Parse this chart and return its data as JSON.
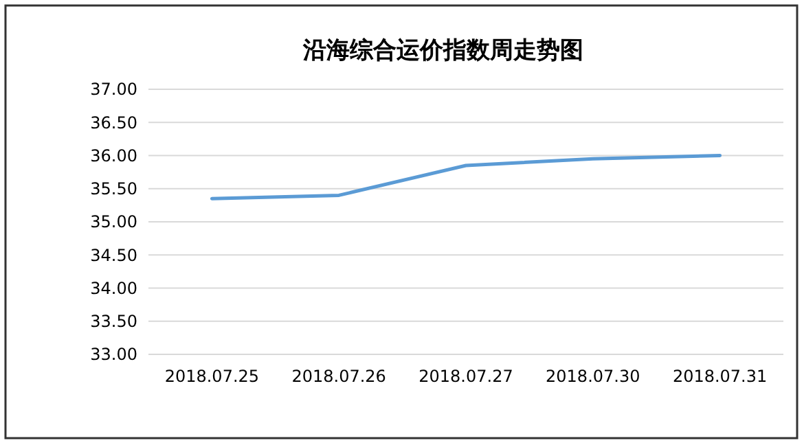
{
  "chart_data": {
    "type": "line",
    "title": "沿海综合运价指数周走势图",
    "categories": [
      "2018.07.25",
      "2018.07.26",
      "2018.07.27",
      "2018.07.30",
      "2018.07.31"
    ],
    "series": [
      {
        "color": "#5b9bd5",
        "values": [
          35.35,
          35.4,
          35.85,
          35.95,
          36.0
        ]
      }
    ],
    "ylim": [
      33,
      37
    ],
    "yticks": [
      {
        "value": 33,
        "label": "33.00"
      },
      {
        "value": 33.5,
        "label": "33.50"
      },
      {
        "value": 34,
        "label": "34.00"
      },
      {
        "value": 34.5,
        "label": "34.50"
      },
      {
        "value": 35,
        "label": "35.00"
      },
      {
        "value": 35.5,
        "label": "35.50"
      },
      {
        "value": 36,
        "label": "36.00"
      },
      {
        "value": 36.5,
        "label": "36.50"
      },
      {
        "value": 37,
        "label": "37.00"
      }
    ],
    "grid": "y",
    "marker": "none",
    "line_style": "solid"
  }
}
